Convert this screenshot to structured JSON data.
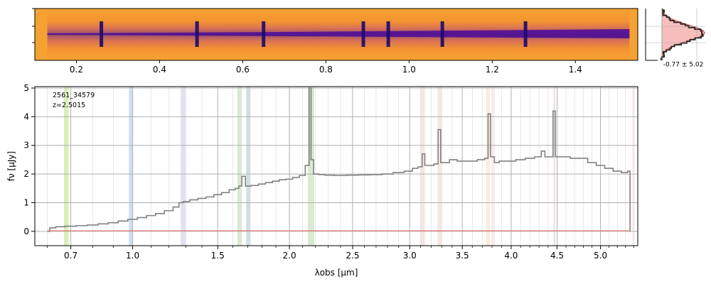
{
  "figure": {
    "annotation_id": "2561_34579",
    "annotation_z": "z=2.5015",
    "noise_label": "-0.77 ± 5.02"
  },
  "chart_data": [
    {
      "panel": "2d-spectrum",
      "type": "heatmap",
      "colormap": "plasma",
      "x_ticks": [
        "0.2",
        "0.4",
        "0.6",
        "0.8",
        "1.0",
        "1.2",
        "1.4"
      ],
      "x_tick_values": [
        0.2,
        0.4,
        0.6,
        0.8,
        1.0,
        1.2,
        1.4
      ],
      "x_range": [
        0.1,
        1.55
      ],
      "trace_x_range": [
        0.13,
        1.53
      ],
      "emission_columns": [
        0.26,
        0.49,
        0.65,
        0.89,
        0.95,
        1.08,
        1.28
      ]
    },
    {
      "panel": "1d-spectrum",
      "type": "line",
      "xlabel": "λobs [μm]",
      "ylabel": "fν [μJy]",
      "x_scale": "sqrt-like (non-linear wavelength axis)",
      "x_range": [
        0.55,
        5.45
      ],
      "ylim": [
        -0.5,
        5.05
      ],
      "grid": true,
      "x_ticks": [
        "0.7",
        "1.0",
        "1.5",
        "2.0",
        "2.5",
        "3.0",
        "3.5",
        "4.0",
        "4.5",
        "5.0"
      ],
      "x_tick_values": [
        0.7,
        1.0,
        1.5,
        2.0,
        2.5,
        3.0,
        3.5,
        4.0,
        4.5,
        5.0
      ],
      "y_ticks": [
        "0",
        "1",
        "2",
        "3",
        "4",
        "5"
      ],
      "y_tick_values": [
        0,
        1,
        2,
        3,
        4,
        5
      ],
      "series": [
        {
          "role": "flux",
          "color": "#808080",
          "x": [
            0.6,
            0.62,
            0.65,
            0.7,
            0.75,
            0.8,
            0.85,
            0.9,
            0.95,
            1.0,
            1.05,
            1.1,
            1.15,
            1.2,
            1.25,
            1.27,
            1.3,
            1.35,
            1.4,
            1.45,
            1.5,
            1.55,
            1.6,
            1.63,
            1.65,
            1.67,
            1.7,
            1.75,
            1.8,
            1.85,
            1.9,
            1.95,
            2.0,
            2.05,
            2.1,
            2.14,
            2.16,
            2.17,
            2.2,
            2.25,
            2.3,
            2.4,
            2.5,
            2.6,
            2.7,
            2.8,
            2.9,
            3.0,
            3.05,
            3.1,
            3.13,
            3.15,
            3.2,
            3.25,
            3.28,
            3.3,
            3.35,
            3.4,
            3.5,
            3.6,
            3.7,
            3.75,
            3.77,
            3.8,
            3.85,
            3.9,
            4.0,
            4.1,
            4.2,
            4.3,
            4.35,
            4.38,
            4.45,
            4.46,
            4.5,
            4.6,
            4.7,
            4.8,
            4.9,
            5.0,
            5.1,
            5.2,
            5.3,
            5.35,
            5.36
          ],
          "y": [
            0.0,
            0.12,
            0.16,
            0.18,
            0.2,
            0.22,
            0.26,
            0.3,
            0.36,
            0.42,
            0.48,
            0.55,
            0.62,
            0.72,
            0.85,
            1.0,
            1.04,
            1.1,
            1.15,
            1.2,
            1.28,
            1.35,
            1.45,
            1.5,
            1.58,
            1.92,
            1.58,
            1.6,
            1.65,
            1.7,
            1.75,
            1.8,
            1.82,
            1.88,
            1.95,
            2.3,
            5.0,
            2.5,
            2.0,
            1.98,
            1.96,
            1.95,
            1.96,
            1.97,
            1.98,
            2.0,
            2.05,
            2.1,
            2.2,
            2.25,
            2.7,
            2.3,
            2.3,
            2.35,
            3.55,
            2.4,
            2.4,
            2.5,
            2.45,
            2.45,
            2.5,
            2.55,
            4.1,
            2.6,
            2.4,
            2.45,
            2.45,
            2.5,
            2.55,
            2.6,
            2.8,
            2.6,
            2.6,
            4.2,
            2.6,
            2.6,
            2.55,
            2.55,
            2.4,
            2.3,
            2.2,
            2.1,
            2.05,
            2.1,
            0.0
          ]
        },
        {
          "role": "uncertainty",
          "color": "#f08080",
          "x": [
            0.6,
            5.36
          ],
          "y": [
            0.02,
            0.02
          ]
        }
      ],
      "shaded_bands": [
        {
          "x": [
            0.67,
            0.69
          ],
          "color": "#9acd32"
        },
        {
          "x": [
            0.98,
            1.0
          ],
          "color": "#6fa8dc"
        },
        {
          "x": [
            1.27,
            1.3
          ],
          "color": "#b4a7d6"
        },
        {
          "x": [
            1.63,
            1.66
          ],
          "color": "#93c47d"
        },
        {
          "x": [
            1.69,
            1.72
          ],
          "color": "#76a5af"
        },
        {
          "x": [
            2.14,
            2.19
          ],
          "color": "#93c47d"
        },
        {
          "x": [
            3.1,
            3.14
          ],
          "color": "#e6b8af"
        },
        {
          "x": [
            3.26,
            3.3
          ],
          "color": "#e6b8af"
        },
        {
          "x": [
            3.74,
            3.78
          ],
          "color": "#f9cb9c"
        },
        {
          "x": [
            3.8,
            3.83
          ],
          "color": "#f4cccc"
        },
        {
          "x": [
            4.46,
            4.48
          ],
          "color": "#d5a6bd"
        },
        {
          "x": [
            5.38,
            5.41
          ],
          "color": "#f4cccc"
        }
      ]
    },
    {
      "panel": "pixel-histogram",
      "type": "line",
      "xlabel": "",
      "ylabel": ""
    }
  ]
}
